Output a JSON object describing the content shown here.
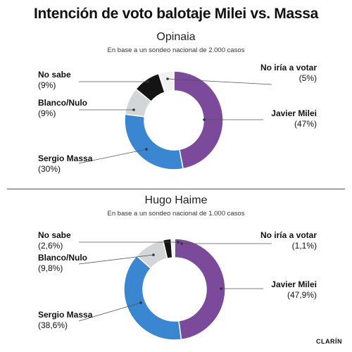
{
  "title": "Intención de voto balotaje Milei vs. Massa",
  "brand": "CLARÍN",
  "colors": {
    "milei": "#7b4a9a",
    "massa": "#3a86d0",
    "blanco": "#d3d6d9",
    "nosabe": "#141414",
    "noiria": "#f1f1f1"
  },
  "chart_data": [
    {
      "type": "pie",
      "title": "Opinaia",
      "subtitle": "En base a un sondeo nacional de 2.000 casos",
      "slices": [
        {
          "key": "milei",
          "label": "Javier Milei",
          "value_text": "(47%)",
          "value": 47
        },
        {
          "key": "massa",
          "label": "Sergio Massa",
          "value_text": "(30%)",
          "value": 30
        },
        {
          "key": "blanco",
          "label": "Blanco/Nulo",
          "value_text": "(9%)",
          "value": 9
        },
        {
          "key": "nosabe",
          "label": "No sabe",
          "value_text": "(9%)",
          "value": 9
        },
        {
          "key": "noiria",
          "label": "No iría a votar",
          "value_text": "(5%)",
          "value": 5
        }
      ]
    },
    {
      "type": "pie",
      "title": "Hugo Haime",
      "subtitle": "En base a un sondeo nacional de 1.000 casos",
      "slices": [
        {
          "key": "milei",
          "label": "Javier Milei",
          "value_text": "(47,9%)",
          "value": 47.9
        },
        {
          "key": "massa",
          "label": "Sergio Massa",
          "value_text": "(38,6%)",
          "value": 38.6
        },
        {
          "key": "blanco",
          "label": "Blanco/Nulo",
          "value_text": "(9,8%)",
          "value": 9.8
        },
        {
          "key": "nosabe",
          "label": "No sabe",
          "value_text": "(2,6%)",
          "value": 2.6
        },
        {
          "key": "noiria",
          "label": "No iría a votar",
          "value_text": "(1,1%)",
          "value": 1.1
        }
      ]
    }
  ]
}
